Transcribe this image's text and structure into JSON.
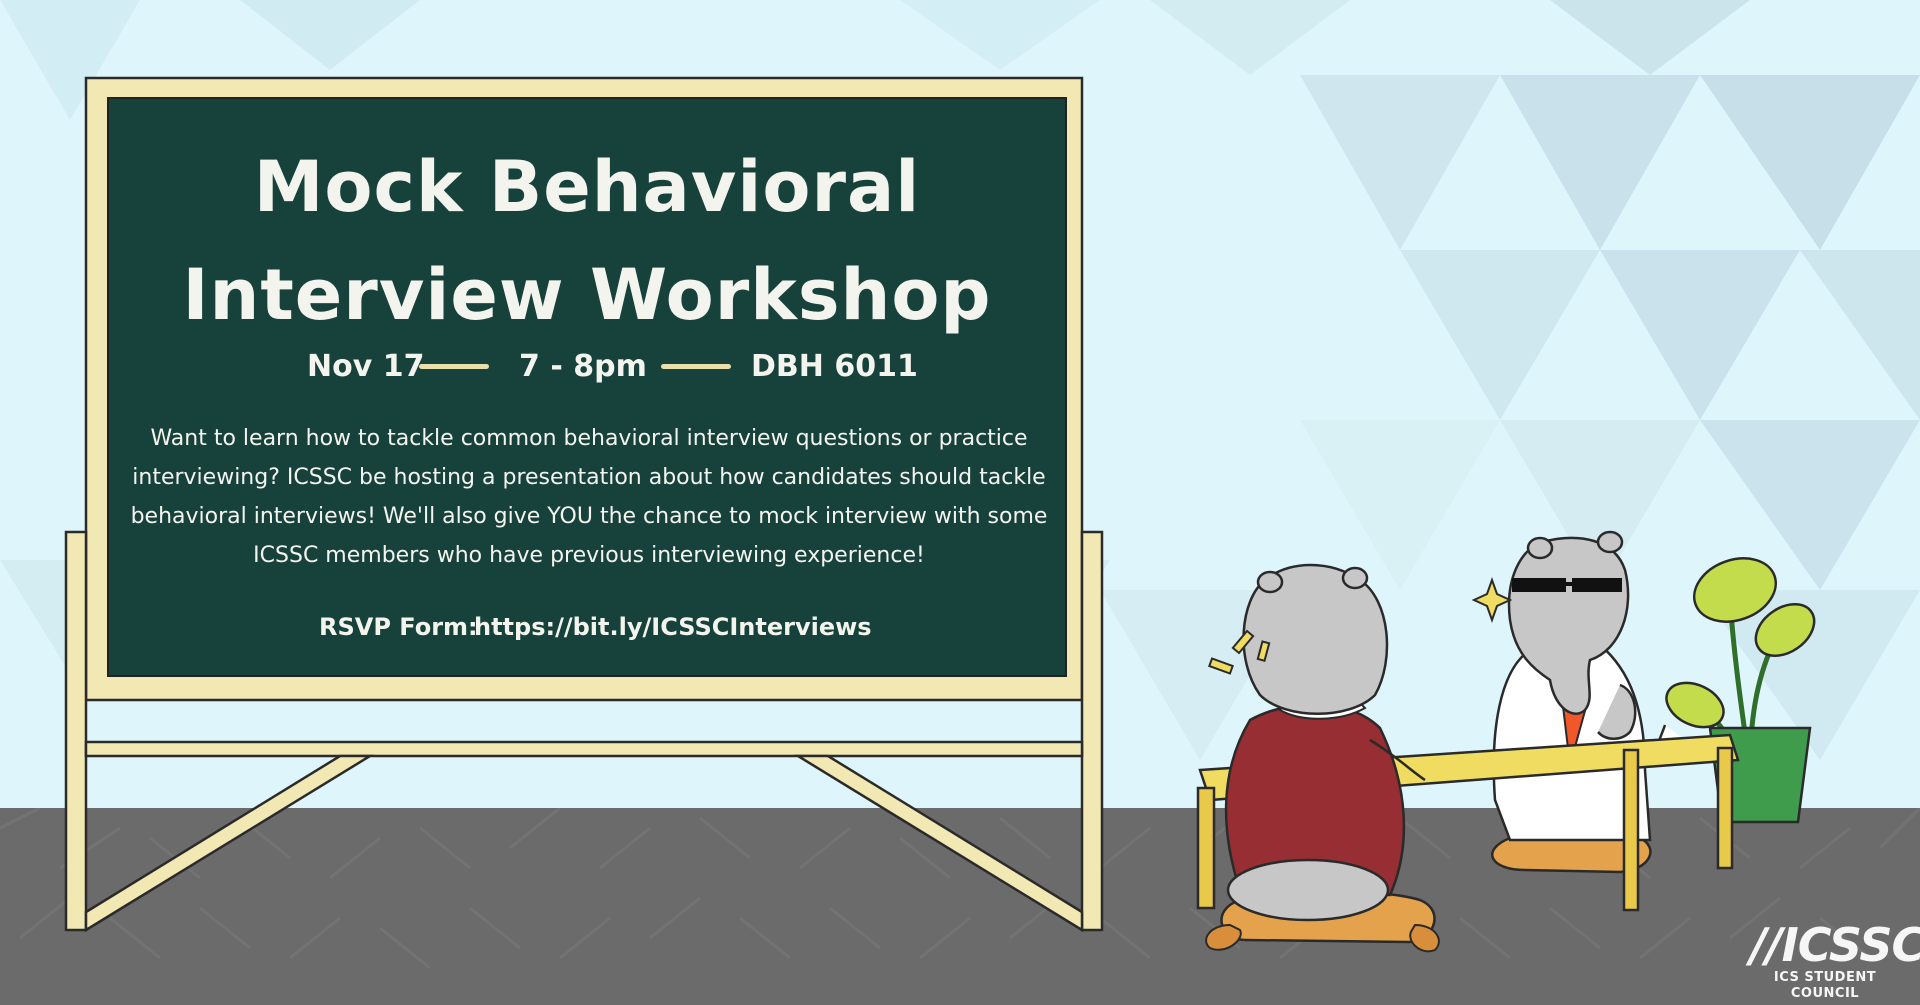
{
  "board": {
    "title_line1": "Mock Behavioral",
    "title_line2": "Interview Workshop",
    "date": "Nov 17",
    "time": "7 - 8pm",
    "location": "DBH 6011",
    "description": "Want to learn how to tackle common behavioral interview questions or practice interviewing? ICSSC be hosting a presentation about how candidates should tackle behavioral interviews! We'll also give YOU the chance to mock interview with some ICSSC members who have previous interviewing experience!",
    "rsvp_label": "RSVP Form:",
    "rsvp_link": "https://bit.ly/ICSSCInterviews"
  },
  "logo": {
    "mark": "//ICSSC",
    "subtitle": "ICS STUDENT COUNCIL"
  },
  "colors": {
    "wall": "#def6fb",
    "floor": "#6b6b6b",
    "chalkboard": "#17423b",
    "board_frame": "#f2e8b4",
    "chalk": "#f4f4ee",
    "table": "#f1dc62",
    "cushion": "#e3a24b",
    "sweater": "#962e33",
    "tie": "#f0582a",
    "plant_pot": "#3f9c4c",
    "leaf": "#c3dc4b"
  },
  "icons": [
    "wall-triangle-pattern",
    "easel-icon",
    "tapir-interviewer-icon",
    "tapir-candidate-icon",
    "potted-plant-icon",
    "sparkle-icon",
    "surprise-marks-icon",
    "sunglasses-icon"
  ]
}
